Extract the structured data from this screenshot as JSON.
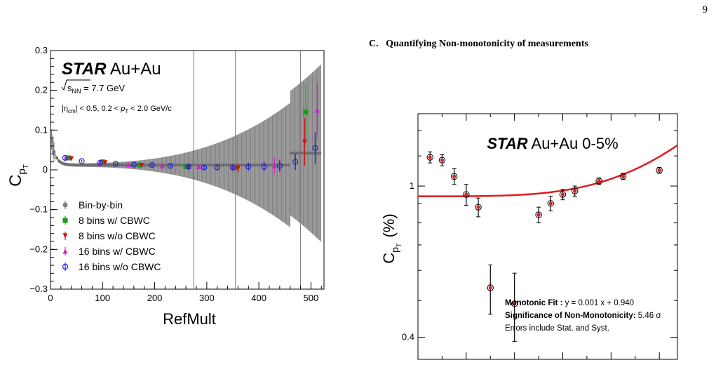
{
  "page": {
    "number": "9"
  },
  "section": {
    "label": "C.",
    "title": "Quantifying Non-monotonicity of measurements"
  },
  "chart_data": [
    {
      "type": "scatter",
      "xlabel": "RefMult",
      "ylabel": "C",
      "ylabel_sub": "p",
      "ylabel_subsub": "T",
      "xlim": [
        0,
        525
      ],
      "ylim": [
        -0.3,
        0.3
      ],
      "xticks": [
        "0",
        "100",
        "200",
        "300",
        "400",
        "500"
      ],
      "yticks": [
        "−0.3",
        "−0.2",
        "−0.1",
        "0",
        "0.1",
        "0.2",
        "0.3"
      ],
      "annotations": {
        "star": "STAR",
        "system": "Au+Au",
        "energy_sqrt": "s",
        "energy_sub": "NN",
        "energy_rest": " = 7.7 GeV",
        "cuts_eta": "|η",
        "cuts_eta_sub": "cm",
        "cuts_rest": "| < 0.5, 0.2 < ",
        "cuts_p": "p",
        "cuts_p_sub": "T",
        "cuts_end": " < 2.0 GeV/c"
      },
      "series": [
        {
          "name": "Bin-by-bin",
          "color": "#808080",
          "marker": "circle",
          "x": [
            5,
            50,
            100,
            150,
            200,
            250,
            300,
            350,
            400,
            450,
            500,
            520
          ],
          "y": [
            0.09,
            0.025,
            0.015,
            0.012,
            0.01,
            0.01,
            0.005,
            0.005,
            0.01,
            0.02,
            0.05,
            0.06
          ]
        },
        {
          "name": "8 bins w/ CBWC",
          "color": "#1a9a1a",
          "marker": "square",
          "x": [
            35,
            100,
            170,
            260,
            355,
            490
          ],
          "y": [
            0.03,
            0.02,
            0.012,
            0.008,
            0.006,
            0.145
          ],
          "err": [
            0.004,
            0.004,
            0.004,
            0.006,
            0.01,
            0.07
          ]
        },
        {
          "name": "8 bins w/o CBWC",
          "color": "#cc1111",
          "marker": "triangle-down",
          "x": [
            40,
            105,
            175,
            265,
            360,
            488
          ],
          "y": [
            0.028,
            0.018,
            0.011,
            0.006,
            0.004,
            0.07
          ],
          "err": [
            0.004,
            0.004,
            0.004,
            0.006,
            0.01,
            0.06
          ]
        },
        {
          "name": "16 bins w/ CBWC",
          "color": "#cc22cc",
          "marker": "triangle-up",
          "x": [
            30,
            95,
            150,
            215,
            285,
            350,
            430,
            512
          ],
          "y": [
            0.03,
            0.019,
            0.013,
            0.01,
            0.008,
            0.007,
            0.01,
            0.15
          ],
          "err": [
            0.004,
            0.004,
            0.004,
            0.005,
            0.006,
            0.008,
            0.02,
            0.07
          ]
        },
        {
          "name": "16 bins w/o CBWC",
          "color": "#2222cc",
          "marker": "open-circle",
          "x": [
            28,
            60,
            95,
            125,
            160,
            195,
            230,
            265,
            295,
            320,
            350,
            380,
            410,
            440,
            470,
            508
          ],
          "y": [
            0.03,
            0.022,
            0.018,
            0.015,
            0.013,
            0.012,
            0.01,
            0.008,
            0.006,
            0.006,
            0.006,
            0.008,
            0.008,
            0.01,
            0.02,
            0.055
          ],
          "err": [
            0.003,
            0.003,
            0.003,
            0.003,
            0.003,
            0.004,
            0.004,
            0.005,
            0.006,
            0.007,
            0.008,
            0.01,
            0.012,
            0.015,
            0.02,
            0.04
          ]
        }
      ],
      "spikes": [
        {
          "x": 275,
          "lo": -0.3,
          "hi": 0.3
        },
        {
          "x": 355,
          "lo": -0.3,
          "hi": 0.3
        },
        {
          "x": 480,
          "lo": -0.3,
          "hi": 0.3
        }
      ]
    },
    {
      "type": "scatter",
      "title_star": "STAR",
      "title": "Au+Au 0-5%",
      "ylabel": "C",
      "ylabel_sub": "p",
      "ylabel_subsub": "T",
      "ylabel_unit": "(%)",
      "ylim": [
        0.35,
        1.55
      ],
      "yticks": [
        "1",
        "0.4"
      ],
      "series": [
        {
          "name": "data",
          "color": "#e31a1c",
          "marker": "circle",
          "x": [
            1,
            2,
            3,
            4,
            5,
            6,
            8,
            10,
            11,
            12,
            13,
            15,
            17,
            20
          ],
          "y": [
            1.19,
            1.17,
            1.06,
            0.95,
            0.88,
            0.54,
            0.49,
            0.84,
            0.9,
            0.95,
            0.97,
            1.03,
            1.06,
            1.1
          ],
          "err": [
            0.04,
            0.04,
            0.05,
            0.06,
            0.05,
            0.08,
            0.1,
            0.04,
            0.04,
            0.03,
            0.03,
            0.02,
            0.02,
            0.02
          ]
        }
      ],
      "fit": {
        "color": "#e31a1c",
        "y_start": 0.94,
        "y_end": 1.28
      },
      "legend": {
        "fit_label": "Monotonic Fit :",
        "fit_eq": " y = 0.001 x + 0.940",
        "sig_label": "Significance of Non-Monotonicity:",
        "sig_value": " 5.46 σ",
        "errors_note": "Errors include Stat. and Syst."
      }
    }
  ]
}
